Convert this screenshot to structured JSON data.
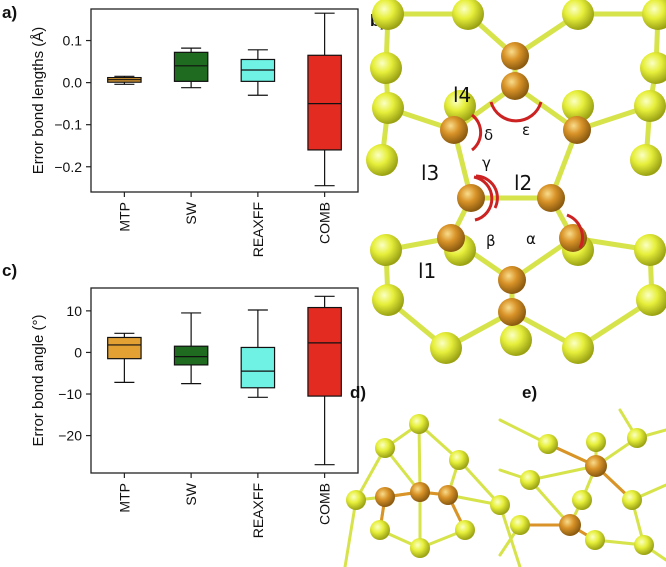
{
  "panel_labels": {
    "a": "a)",
    "b": "b)",
    "c": "c)",
    "d": "d)",
    "e": "e)"
  },
  "colors": {
    "MTP": "#e3a033",
    "SW": "#1f6b1f",
    "REAXFF": "#6ff2e4",
    "COMB": "#e42b22",
    "atom_yellow": "#e6ef3a",
    "atom_orange": "#d99328",
    "bond": "#d7e34a",
    "angle_arc": "#cc2222"
  },
  "chart_data": [
    {
      "type": "box",
      "panel": "a)",
      "ylabel": "Error bond lengths (Å)",
      "categories": [
        "MTP",
        "SW",
        "REAXFF",
        "COMB"
      ],
      "ylim": [
        -0.26,
        0.175
      ],
      "yticks": [
        -0.2,
        -0.1,
        0.0,
        0.1
      ],
      "ytick_labels": [
        "−0.2",
        "−0.1",
        "0.0",
        "0.1"
      ],
      "boxes": [
        {
          "name": "MTP",
          "whislo": -0.004,
          "q1": 0.001,
          "med": 0.007,
          "q3": 0.012,
          "whishi": 0.015
        },
        {
          "name": "SW",
          "whislo": -0.012,
          "q1": 0.003,
          "med": 0.04,
          "q3": 0.072,
          "whishi": 0.082
        },
        {
          "name": "REAXFF",
          "whislo": -0.03,
          "q1": 0.003,
          "med": 0.03,
          "q3": 0.055,
          "whishi": 0.078
        },
        {
          "name": "COMB",
          "whislo": -0.245,
          "q1": -0.16,
          "med": -0.05,
          "q3": 0.065,
          "whishi": 0.165
        }
      ],
      "grid": false,
      "legend": "none"
    },
    {
      "type": "box",
      "panel": "c)",
      "ylabel": "Error bond angle (°)",
      "categories": [
        "MTP",
        "SW",
        "REAXFF",
        "COMB"
      ],
      "ylim": [
        -29,
        15.5
      ],
      "yticks": [
        -20,
        -10,
        0,
        10
      ],
      "ytick_labels": [
        "−20",
        "−10",
        "0",
        "10"
      ],
      "boxes": [
        {
          "name": "MTP",
          "whislo": -7.2,
          "q1": -1.5,
          "med": 1.8,
          "q3": 3.6,
          "whishi": 4.6
        },
        {
          "name": "SW",
          "whislo": -7.5,
          "q1": -3.0,
          "med": -1.0,
          "q3": 1.5,
          "whishi": 9.5
        },
        {
          "name": "REAXFF",
          "whislo": -10.8,
          "q1": -8.5,
          "med": -4.5,
          "q3": 1.2,
          "whishi": 10.2
        },
        {
          "name": "COMB",
          "whislo": -27.0,
          "q1": -10.5,
          "med": 2.3,
          "q3": 10.8,
          "whishi": 13.5
        }
      ],
      "grid": false,
      "legend": "none"
    }
  ],
  "molecule_b": {
    "bond_labels": [
      "l4",
      "l3",
      "l2",
      "l1"
    ],
    "angle_labels": [
      "δ",
      "ε",
      "γ",
      "β",
      "α"
    ]
  }
}
